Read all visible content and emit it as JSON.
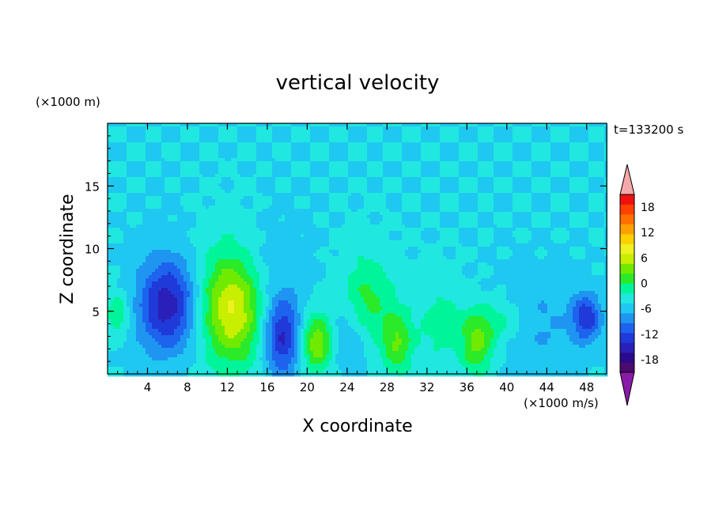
{
  "chart_data": {
    "type": "heatmap",
    "title": "vertical velocity",
    "time_label": "t=133200 s",
    "xlabel": "X coordinate",
    "ylabel": "Z coordinate",
    "x_unit": "(×1000 m/s)",
    "y_unit": "(×1000 m)",
    "xlim": [
      0,
      50
    ],
    "ylim": [
      0,
      20
    ],
    "x_ticks": [
      4,
      8,
      12,
      16,
      20,
      24,
      28,
      32,
      36,
      40,
      44,
      48
    ],
    "y_ticks": [
      5,
      10,
      15
    ],
    "colorbar": {
      "ticks": [
        18,
        12,
        6,
        0,
        -6,
        -12,
        -18
      ],
      "range": [
        -21,
        21
      ],
      "step": 3,
      "colors": [
        "#4a0a6e",
        "#2a0a8a",
        "#2a1fb8",
        "#1f3ad8",
        "#1e63ee",
        "#1f95f2",
        "#1fc8f0",
        "#20e8e0",
        "#00f59a",
        "#2aea2a",
        "#70ea00",
        "#c8ee00",
        "#eef020",
        "#ffd000",
        "#ffa000",
        "#ff7000",
        "#ff4000",
        "#f01010"
      ],
      "under_color": "#8a1aa8",
      "over_color": "#f4a8a8"
    },
    "field": {
      "background": 0,
      "features": [
        {
          "x": 6,
          "z": 5.5,
          "sx": 2.0,
          "sz": 2.6,
          "value": -14
        },
        {
          "x": 12.5,
          "z": 5.5,
          "sx": 2.2,
          "sz": 3.3,
          "value": 16
        },
        {
          "x": 17.5,
          "z": 3.0,
          "sx": 1.3,
          "sz": 2.2,
          "value": -13
        },
        {
          "x": 21,
          "z": 2.5,
          "sx": 1.2,
          "sz": 1.6,
          "value": 12
        },
        {
          "x": 26,
          "z": 6.0,
          "sx": 1.8,
          "sz": 2.5,
          "value": 7
        },
        {
          "x": 29,
          "z": 2.5,
          "sx": 1.1,
          "sz": 1.8,
          "value": 9
        },
        {
          "x": 37,
          "z": 2.2,
          "sx": 1.2,
          "sz": 1.6,
          "value": 9
        },
        {
          "x": 39,
          "z": 4.2,
          "sx": 2.6,
          "sz": 1.3,
          "value": 5
        },
        {
          "x": 43,
          "z": 4.0,
          "sx": 2.8,
          "sz": 2.5,
          "value": -4
        },
        {
          "x": 48,
          "z": 4.5,
          "sx": 1.0,
          "sz": 1.3,
          "value": -11
        },
        {
          "x": 1,
          "z": 4.8,
          "sx": 0.8,
          "sz": 1.2,
          "value": 6
        },
        {
          "x": 15,
          "z": 8.5,
          "sx": 3.0,
          "sz": 2.5,
          "value": -3
        },
        {
          "x": 33,
          "z": 4.0,
          "sx": 1.5,
          "sz": 2.5,
          "value": 4
        },
        {
          "x": 24,
          "z": 3.0,
          "sx": 1.5,
          "sz": 2.0,
          "value": -4
        }
      ]
    }
  }
}
